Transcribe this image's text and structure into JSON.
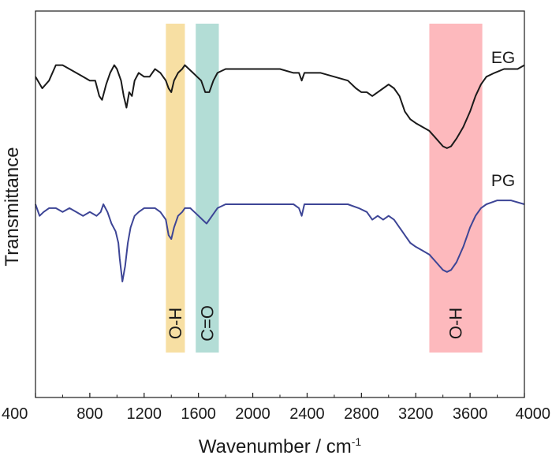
{
  "chart_data": {
    "type": "line",
    "xlabel": "Wavenumber / cm",
    "xlabel_sup": "-1",
    "ylabel": "Transmittance",
    "xlim": [
      400,
      4000
    ],
    "ylim": [
      0,
      1
    ],
    "xticks": [
      400,
      800,
      1200,
      1600,
      2000,
      2400,
      2800,
      3200,
      3600,
      4000
    ],
    "grid": false,
    "bands": [
      {
        "label": "O-H",
        "x": [
          1360,
          1500
        ],
        "color": "#f7dfa3"
      },
      {
        "label": "C=O",
        "x": [
          1580,
          1750
        ],
        "color": "#b3ddd6"
      },
      {
        "label": "O-H",
        "x": [
          3300,
          3690
        ],
        "color": "#fdb9bd"
      }
    ],
    "series": [
      {
        "name": "EG",
        "color": "#1a1a1a",
        "points": [
          [
            400,
            0.83
          ],
          [
            450,
            0.8
          ],
          [
            500,
            0.82
          ],
          [
            550,
            0.86
          ],
          [
            600,
            0.86
          ],
          [
            650,
            0.85
          ],
          [
            700,
            0.84
          ],
          [
            750,
            0.83
          ],
          [
            800,
            0.82
          ],
          [
            840,
            0.82
          ],
          [
            870,
            0.78
          ],
          [
            890,
            0.77
          ],
          [
            920,
            0.81
          ],
          [
            950,
            0.84
          ],
          [
            980,
            0.86
          ],
          [
            1000,
            0.85
          ],
          [
            1030,
            0.82
          ],
          [
            1050,
            0.78
          ],
          [
            1070,
            0.75
          ],
          [
            1090,
            0.79
          ],
          [
            1110,
            0.78
          ],
          [
            1130,
            0.82
          ],
          [
            1160,
            0.84
          ],
          [
            1200,
            0.83
          ],
          [
            1240,
            0.83
          ],
          [
            1280,
            0.85
          ],
          [
            1320,
            0.84
          ],
          [
            1360,
            0.82
          ],
          [
            1380,
            0.8
          ],
          [
            1400,
            0.79
          ],
          [
            1420,
            0.82
          ],
          [
            1450,
            0.84
          ],
          [
            1480,
            0.85
          ],
          [
            1500,
            0.86
          ],
          [
            1530,
            0.85
          ],
          [
            1560,
            0.84
          ],
          [
            1590,
            0.83
          ],
          [
            1620,
            0.82
          ],
          [
            1650,
            0.79
          ],
          [
            1680,
            0.79
          ],
          [
            1710,
            0.82
          ],
          [
            1740,
            0.84
          ],
          [
            1800,
            0.85
          ],
          [
            1900,
            0.85
          ],
          [
            2000,
            0.85
          ],
          [
            2100,
            0.85
          ],
          [
            2200,
            0.85
          ],
          [
            2300,
            0.84
          ],
          [
            2340,
            0.84
          ],
          [
            2360,
            0.82
          ],
          [
            2380,
            0.84
          ],
          [
            2400,
            0.84
          ],
          [
            2500,
            0.84
          ],
          [
            2600,
            0.83
          ],
          [
            2700,
            0.82
          ],
          [
            2760,
            0.8
          ],
          [
            2800,
            0.79
          ],
          [
            2840,
            0.79
          ],
          [
            2880,
            0.78
          ],
          [
            2920,
            0.79
          ],
          [
            2960,
            0.8
          ],
          [
            3000,
            0.81
          ],
          [
            3040,
            0.8
          ],
          [
            3080,
            0.78
          ],
          [
            3120,
            0.74
          ],
          [
            3160,
            0.72
          ],
          [
            3200,
            0.71
          ],
          [
            3250,
            0.7
          ],
          [
            3300,
            0.69
          ],
          [
            3350,
            0.67
          ],
          [
            3400,
            0.65
          ],
          [
            3430,
            0.645
          ],
          [
            3460,
            0.65
          ],
          [
            3500,
            0.67
          ],
          [
            3550,
            0.7
          ],
          [
            3600,
            0.74
          ],
          [
            3640,
            0.78
          ],
          [
            3680,
            0.81
          ],
          [
            3720,
            0.83
          ],
          [
            3780,
            0.84
          ],
          [
            3850,
            0.85
          ],
          [
            3950,
            0.85
          ],
          [
            4000,
            0.86
          ]
        ]
      },
      {
        "name": "PG",
        "color": "#3d4596",
        "points": [
          [
            400,
            0.5
          ],
          [
            430,
            0.47
          ],
          [
            460,
            0.48
          ],
          [
            500,
            0.49
          ],
          [
            550,
            0.49
          ],
          [
            600,
            0.48
          ],
          [
            650,
            0.49
          ],
          [
            700,
            0.48
          ],
          [
            750,
            0.47
          ],
          [
            800,
            0.48
          ],
          [
            850,
            0.47
          ],
          [
            880,
            0.48
          ],
          [
            900,
            0.5
          ],
          [
            930,
            0.48
          ],
          [
            960,
            0.45
          ],
          [
            990,
            0.43
          ],
          [
            1010,
            0.4
          ],
          [
            1020,
            0.36
          ],
          [
            1040,
            0.3
          ],
          [
            1060,
            0.34
          ],
          [
            1080,
            0.4
          ],
          [
            1100,
            0.44
          ],
          [
            1130,
            0.47
          ],
          [
            1160,
            0.48
          ],
          [
            1200,
            0.49
          ],
          [
            1240,
            0.49
          ],
          [
            1280,
            0.49
          ],
          [
            1320,
            0.48
          ],
          [
            1360,
            0.46
          ],
          [
            1380,
            0.42
          ],
          [
            1400,
            0.41
          ],
          [
            1420,
            0.44
          ],
          [
            1450,
            0.47
          ],
          [
            1480,
            0.48
          ],
          [
            1500,
            0.49
          ],
          [
            1540,
            0.49
          ],
          [
            1570,
            0.48
          ],
          [
            1600,
            0.47
          ],
          [
            1630,
            0.46
          ],
          [
            1660,
            0.45
          ],
          [
            1700,
            0.47
          ],
          [
            1740,
            0.49
          ],
          [
            1800,
            0.5
          ],
          [
            1900,
            0.5
          ],
          [
            2000,
            0.5
          ],
          [
            2100,
            0.5
          ],
          [
            2200,
            0.5
          ],
          [
            2300,
            0.5
          ],
          [
            2340,
            0.49
          ],
          [
            2360,
            0.47
          ],
          [
            2380,
            0.5
          ],
          [
            2400,
            0.5
          ],
          [
            2500,
            0.5
          ],
          [
            2600,
            0.5
          ],
          [
            2700,
            0.5
          ],
          [
            2780,
            0.49
          ],
          [
            2840,
            0.48
          ],
          [
            2880,
            0.46
          ],
          [
            2920,
            0.47
          ],
          [
            2960,
            0.46
          ],
          [
            3000,
            0.47
          ],
          [
            3040,
            0.46
          ],
          [
            3080,
            0.44
          ],
          [
            3120,
            0.42
          ],
          [
            3160,
            0.4
          ],
          [
            3200,
            0.39
          ],
          [
            3250,
            0.38
          ],
          [
            3300,
            0.37
          ],
          [
            3350,
            0.35
          ],
          [
            3400,
            0.33
          ],
          [
            3430,
            0.325
          ],
          [
            3460,
            0.33
          ],
          [
            3500,
            0.35
          ],
          [
            3550,
            0.39
          ],
          [
            3600,
            0.44
          ],
          [
            3640,
            0.47
          ],
          [
            3680,
            0.49
          ],
          [
            3720,
            0.5
          ],
          [
            3800,
            0.51
          ],
          [
            3900,
            0.51
          ],
          [
            4000,
            0.5
          ]
        ]
      }
    ]
  }
}
